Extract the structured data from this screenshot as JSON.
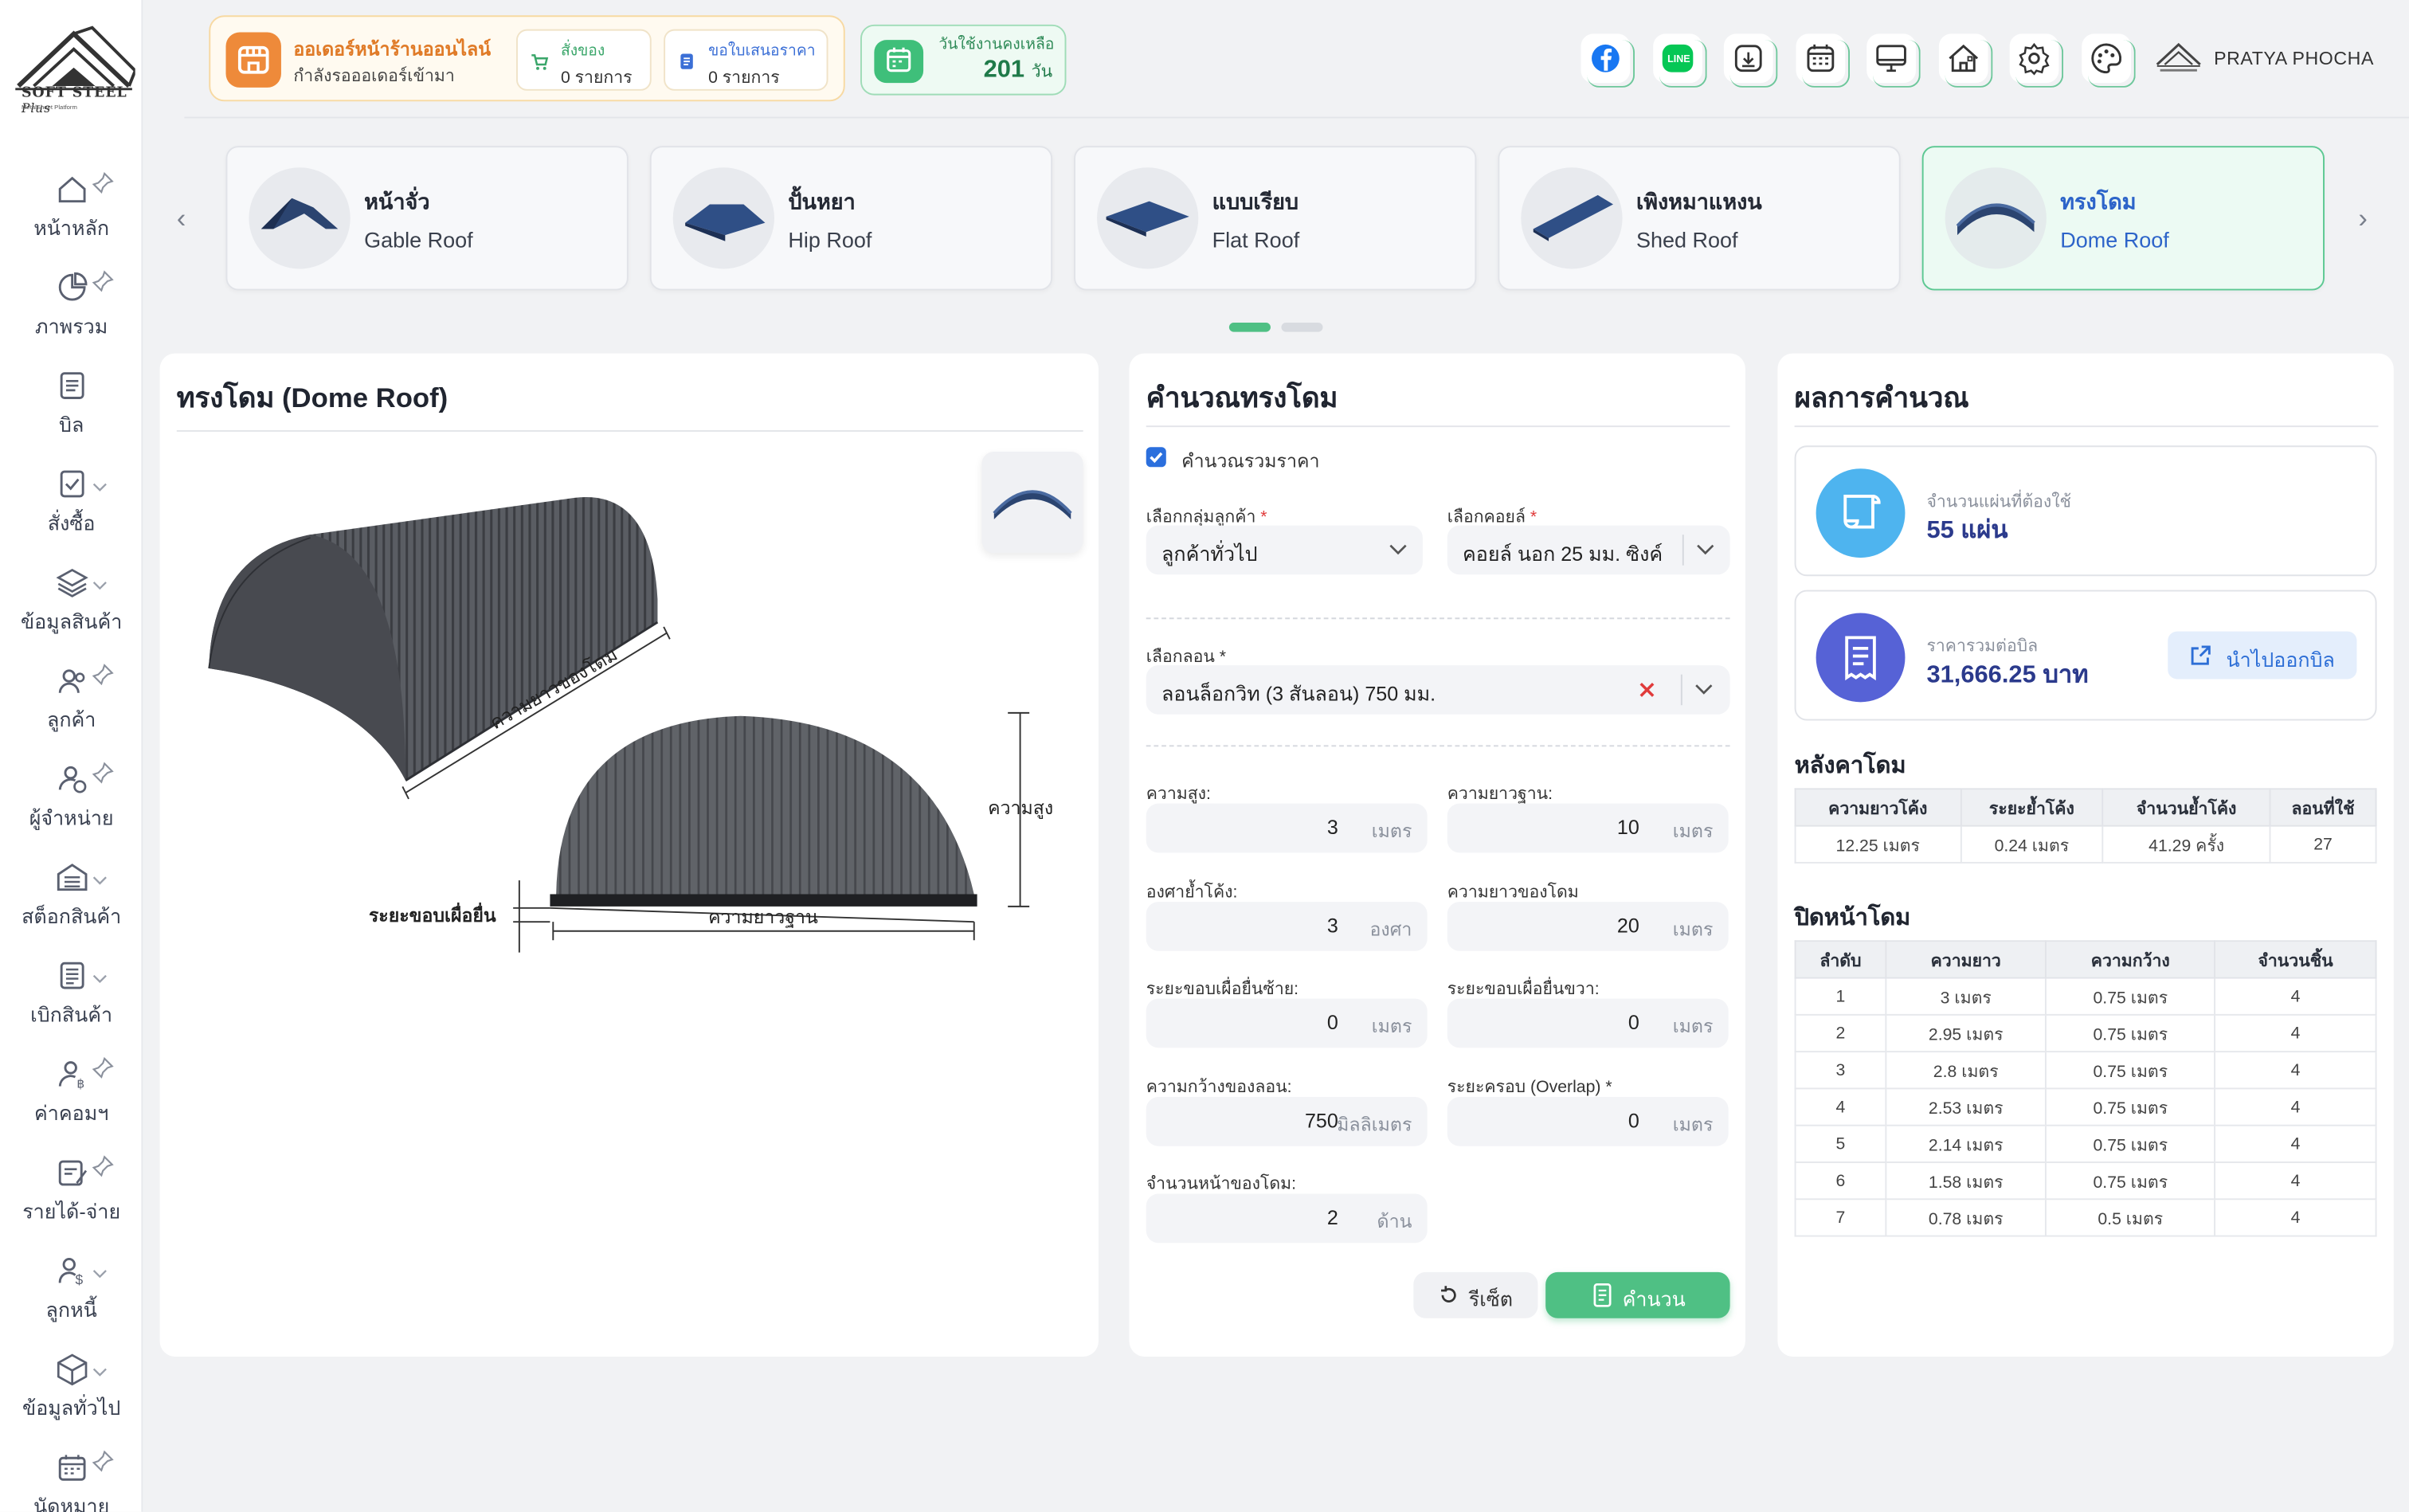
{
  "brand": {
    "name": "SOFT STEEL",
    "suffix": "Plus",
    "sub": "MetalSheet Platform"
  },
  "sidebar": {
    "items": [
      {
        "label": "หน้าหลัก",
        "icon": "home-icon",
        "marker": "pin"
      },
      {
        "label": "ภาพรวม",
        "icon": "pie-chart-icon",
        "marker": "pin"
      },
      {
        "label": "บิล",
        "icon": "list-icon",
        "marker": "none"
      },
      {
        "label": "สั่งซื้อ",
        "icon": "clipboard-check-icon",
        "marker": "chevron"
      },
      {
        "label": "ข้อมูลสินค้า",
        "icon": "layers-icon",
        "marker": "chevron"
      },
      {
        "label": "ลูกค้า",
        "icon": "users-icon",
        "marker": "pin"
      },
      {
        "label": "ผู้จำหน่าย",
        "icon": "supplier-icon",
        "marker": "pin"
      },
      {
        "label": "สต็อกสินค้า",
        "icon": "warehouse-icon",
        "marker": "chevron"
      },
      {
        "label": "เบิกสินค้า",
        "icon": "withdraw-list-icon",
        "marker": "chevron"
      },
      {
        "label": "ค่าคอมฯ",
        "icon": "commission-icon",
        "marker": "pin"
      },
      {
        "label": "รายได้-จ่าย",
        "icon": "income-expense-icon",
        "marker": "pin"
      },
      {
        "label": "ลูกหนี้",
        "icon": "debtor-icon",
        "marker": "chevron"
      },
      {
        "label": "ข้อมูลทั่วไป",
        "icon": "box-icon",
        "marker": "chevron"
      },
      {
        "label": "นัดหมาย",
        "icon": "calendar-icon",
        "marker": "pin"
      }
    ]
  },
  "header": {
    "orders": {
      "title": "ออเดอร์หน้าร้านออนไลน์",
      "subtitle": "กำลังรอออเดอร์เข้ามา",
      "purchase": {
        "label": "สั่งของ",
        "value": "0 รายการ"
      },
      "quotation": {
        "label": "ขอใบเสนอราคา",
        "value": "0 รายการ"
      }
    },
    "days": {
      "label": "วันใช้งานคงเหลือ",
      "value": "201",
      "unit": "วัน"
    },
    "icons": [
      "facebook-icon",
      "line-icon",
      "download-icon",
      "calendar-grid-icon",
      "monitor-icon",
      "house-icon",
      "settings-icon",
      "palette-icon"
    ],
    "user": "PRATYA PHOCHA",
    "accent": "#4fc084"
  },
  "roof_types": [
    {
      "th": "หน้าจั่ว",
      "en": "Gable Roof",
      "active": false
    },
    {
      "th": "ปั้นหยา",
      "en": "Hip Roof",
      "active": false
    },
    {
      "th": "แบบเรียบ",
      "en": "Flat Roof",
      "active": false
    },
    {
      "th": "เพิงหมาแหงน",
      "en": "Shed Roof",
      "active": false
    },
    {
      "th": "ทรงโดม",
      "en": "Dome Roof",
      "active": true
    }
  ],
  "diagram": {
    "title": "ทรงโดม (Dome Roof)",
    "labels": {
      "dome_length": "ความยาวของโดม",
      "height": "ความสูง",
      "overhang": "ระยะขอบเผื่อยื่น",
      "base_length": "ความยาวฐาน"
    }
  },
  "form": {
    "title": "คำนวณทรงโดม",
    "include_price": {
      "label": "คำนวณรวมราคา",
      "checked": true
    },
    "customer_group": {
      "label": "เลือกกลุ่มลูกค้า",
      "value": "ลูกค้าทั่วไป"
    },
    "coil": {
      "label": "เลือกคอยล์",
      "value": "คอยล์ นอก 25 มม. ซิงค์"
    },
    "profile": {
      "label": "เลือกลอน *",
      "value": "ลอนล็อกวิท (3 สันลอน) 750 มม."
    },
    "fields": [
      {
        "label": "ความสูง:",
        "value": "3",
        "unit": "เมตร"
      },
      {
        "label": "ความยาวฐาน:",
        "value": "10",
        "unit": "เมตร"
      },
      {
        "label": "องศาย้ำโค้ง:",
        "value": "3",
        "unit": "องศา"
      },
      {
        "label": "ความยาวของโดม",
        "value": "20",
        "unit": "เมตร"
      },
      {
        "label": "ระยะขอบเผื่อยื่นซ้าย:",
        "value": "0",
        "unit": "เมตร"
      },
      {
        "label": "ระยะขอบเผื่อยื่นขวา:",
        "value": "0",
        "unit": "เมตร"
      },
      {
        "label": "ความกว้างของลอน:",
        "value": "750",
        "unit": "มิลลิเมตร"
      },
      {
        "label": "ระยะครอบ (Overlap) *",
        "value": "0",
        "unit": "เมตร"
      },
      {
        "label": "จำนวนหน้าของโดม:",
        "value": "2",
        "unit": "ด้าน"
      }
    ],
    "reset_label": "รีเซ็ต",
    "calc_label": "คำนวน"
  },
  "results": {
    "title": "ผลการคำนวณ",
    "sheets": {
      "label": "จำนวนแผ่นที่ต้องใช้",
      "value": "55 แผ่น"
    },
    "price": {
      "label": "ราคารวมต่อบิล",
      "value": "31,666.25 บาท"
    },
    "bill_button": "นำไปออกบิล",
    "roof_section": {
      "title": "หลังคาโดม",
      "headers": [
        "ความยาวโค้ง",
        "ระยะย้ำโค้ง",
        "จำนวนย้ำโค้ง",
        "ลอนที่ใช้"
      ],
      "row": [
        "12.25 เมตร",
        "0.24 เมตร",
        "41.29 ครั้ง",
        "27"
      ]
    },
    "front_section": {
      "title": "ปิดหน้าโดม",
      "headers": [
        "ลำดับ",
        "ความยาว",
        "ความกว้าง",
        "จำนวนชิ้น"
      ],
      "rows": [
        [
          "1",
          "3 เมตร",
          "0.75 เมตร",
          "4"
        ],
        [
          "2",
          "2.95 เมตร",
          "0.75 เมตร",
          "4"
        ],
        [
          "3",
          "2.8 เมตร",
          "0.75 เมตร",
          "4"
        ],
        [
          "4",
          "2.53 เมตร",
          "0.75 เมตร",
          "4"
        ],
        [
          "5",
          "2.14 เมตร",
          "0.75 เมตร",
          "4"
        ],
        [
          "6",
          "1.58 เมตร",
          "0.75 เมตร",
          "4"
        ],
        [
          "7",
          "0.78 เมตร",
          "0.5 เมตร",
          "4"
        ]
      ]
    }
  }
}
